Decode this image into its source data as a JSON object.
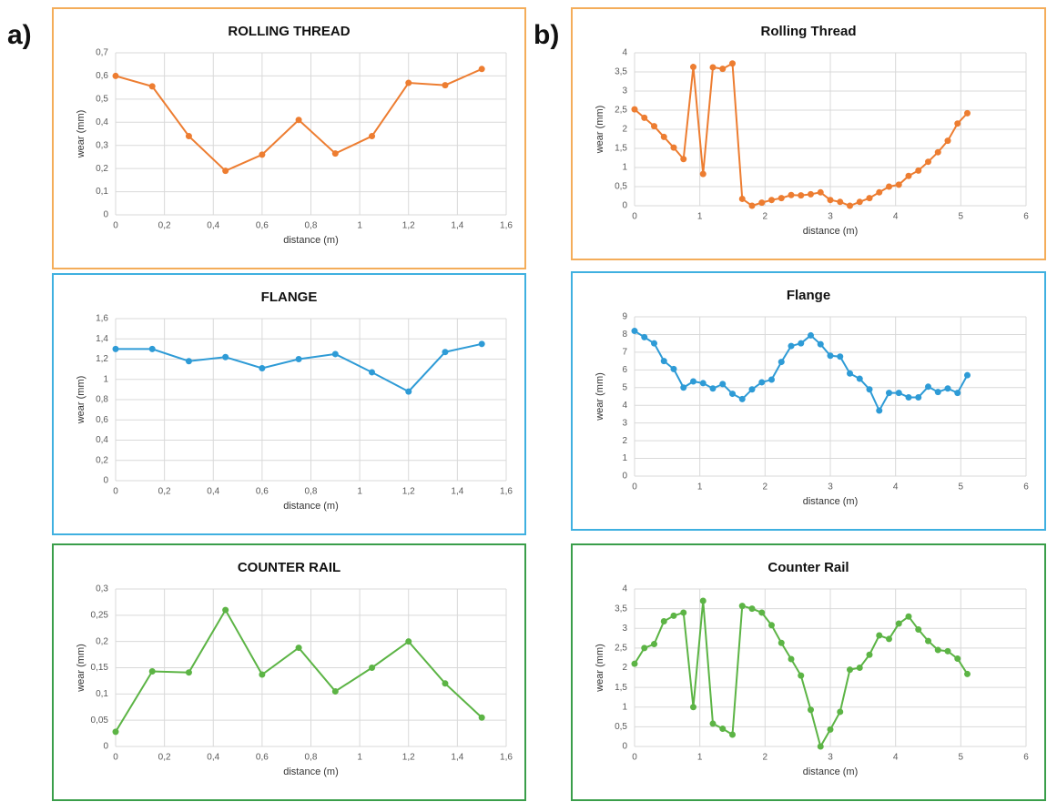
{
  "panel_labels": [
    "a)",
    "b)"
  ],
  "chart_data": [
    {
      "type": "line",
      "title": "ROLLING THREAD",
      "xlabel": "distance (m)",
      "ylabel": "wear (mm)",
      "color": "#ed7d31",
      "border_color": "#f4ad5a",
      "grid": true,
      "x": [
        0,
        0.15,
        0.3,
        0.45,
        0.6,
        0.75,
        0.9,
        1.05,
        1.2,
        1.35,
        1.5
      ],
      "values": [
        0.6,
        0.555,
        0.34,
        0.19,
        0.26,
        0.41,
        0.265,
        0.34,
        0.57,
        0.56,
        0.63
      ],
      "xlim": [
        0,
        1.6
      ],
      "xticks": [
        0,
        {
          "value": 0.2,
          "label": "0,2"
        },
        {
          "value": 0.4,
          "label": "0,4"
        },
        {
          "value": 0.6,
          "label": "0,6"
        },
        {
          "value": 0.8,
          "label": "0,8"
        },
        1,
        {
          "value": 1.2,
          "label": "1,2"
        },
        {
          "value": 1.4,
          "label": "1,4"
        },
        {
          "value": 1.6,
          "label": "1,6"
        }
      ],
      "ylim": [
        0,
        0.7
      ],
      "yticks": [
        0,
        {
          "value": 0.1,
          "label": "0,1"
        },
        {
          "value": 0.2,
          "label": "0,2"
        },
        {
          "value": 0.3,
          "label": "0,3"
        },
        {
          "value": 0.4,
          "label": "0,4"
        },
        {
          "value": 0.5,
          "label": "0,5"
        },
        {
          "value": 0.6,
          "label": "0,6"
        },
        {
          "value": 0.7,
          "label": "0,7"
        }
      ]
    },
    {
      "type": "line",
      "title": "Rolling Thread",
      "xlabel": "distance (m)",
      "ylabel": "wear (mm)",
      "color": "#ed7d31",
      "border_color": "#f4ad5a",
      "grid": true,
      "x": [
        0,
        0.15,
        0.3,
        0.45,
        0.6,
        0.75,
        0.9,
        1.05,
        1.2,
        1.35,
        1.5,
        1.65,
        1.8,
        1.95,
        2.1,
        2.25,
        2.4,
        2.55,
        2.7,
        2.85,
        3,
        3.15,
        3.3,
        3.45,
        3.6,
        3.75,
        3.9,
        4.05,
        4.2,
        4.35,
        4.5,
        4.65,
        4.8,
        4.95,
        5.1
      ],
      "values": [
        2.52,
        2.3,
        2.08,
        1.8,
        1.52,
        1.22,
        3.63,
        0.83,
        3.62,
        3.58,
        3.72,
        0.18,
        0,
        0.08,
        0.15,
        0.2,
        0.28,
        0.27,
        0.3,
        0.35,
        0.15,
        0.1,
        0,
        0.1,
        0.2,
        0.35,
        0.5,
        0.55,
        0.78,
        0.92,
        1.15,
        1.4,
        1.7,
        2.15,
        2.42
      ],
      "xlim": [
        0,
        6
      ],
      "xticks": [
        0,
        1,
        2,
        3,
        4,
        5,
        6
      ],
      "ylim": [
        0,
        4
      ],
      "yticks": [
        0,
        {
          "value": 0.5,
          "label": "0,5"
        },
        1,
        {
          "value": 1.5,
          "label": "1,5"
        },
        2,
        {
          "value": 2.5,
          "label": "2,5"
        },
        3,
        {
          "value": 3.5,
          "label": "3,5"
        },
        4
      ]
    },
    {
      "type": "line",
      "title": "FLANGE",
      "xlabel": "distance (m)",
      "ylabel": "wear (mm)",
      "color": "#2e9bd6",
      "border_color": "#3fb0e0",
      "grid": true,
      "x": [
        0,
        0.15,
        0.3,
        0.45,
        0.6,
        0.75,
        0.9,
        1.05,
        1.2,
        1.35,
        1.5
      ],
      "values": [
        1.3,
        1.3,
        1.18,
        1.22,
        1.11,
        1.2,
        1.25,
        1.07,
        0.88,
        1.27,
        1.35
      ],
      "xlim": [
        0,
        1.6
      ],
      "xticks": [
        0,
        {
          "value": 0.2,
          "label": "0,2"
        },
        {
          "value": 0.4,
          "label": "0,4"
        },
        {
          "value": 0.6,
          "label": "0,6"
        },
        {
          "value": 0.8,
          "label": "0,8"
        },
        1,
        {
          "value": 1.2,
          "label": "1,2"
        },
        {
          "value": 1.4,
          "label": "1,4"
        },
        {
          "value": 1.6,
          "label": "1,6"
        }
      ],
      "ylim": [
        0,
        1.6
      ],
      "yticks": [
        0,
        {
          "value": 0.2,
          "label": "0,2"
        },
        {
          "value": 0.4,
          "label": "0,4"
        },
        {
          "value": 0.6,
          "label": "0,6"
        },
        {
          "value": 0.8,
          "label": "0,8"
        },
        1,
        {
          "value": 1.2,
          "label": "1,2"
        },
        {
          "value": 1.4,
          "label": "1,4"
        },
        {
          "value": 1.6,
          "label": "1,6"
        }
      ]
    },
    {
      "type": "line",
      "title": "Flange",
      "xlabel": "distance (m)",
      "ylabel": "wear (mm)",
      "color": "#2e9bd6",
      "border_color": "#3fb0e0",
      "grid": true,
      "x": [
        0,
        0.15,
        0.3,
        0.45,
        0.6,
        0.75,
        0.9,
        1.05,
        1.2,
        1.35,
        1.5,
        1.65,
        1.8,
        1.95,
        2.1,
        2.25,
        2.4,
        2.55,
        2.7,
        2.85,
        3,
        3.15,
        3.3,
        3.45,
        3.6,
        3.75,
        3.9,
        4.05,
        4.2,
        4.35,
        4.5,
        4.65,
        4.8,
        4.95,
        5.1
      ],
      "values": [
        8.2,
        7.85,
        7.5,
        6.5,
        6.05,
        5,
        5.35,
        5.25,
        4.95,
        5.2,
        4.65,
        4.35,
        4.9,
        5.3,
        5.45,
        6.45,
        7.35,
        7.5,
        7.95,
        7.45,
        6.8,
        6.75,
        5.8,
        5.5,
        4.9,
        3.7,
        4.7,
        4.7,
        4.45,
        4.45,
        5.05,
        4.75,
        4.95,
        4.7,
        5.7
      ],
      "xlim": [
        0,
        6
      ],
      "xticks": [
        0,
        1,
        2,
        3,
        4,
        5,
        6
      ],
      "ylim": [
        0,
        9
      ],
      "yticks": [
        0,
        1,
        2,
        3,
        4,
        5,
        6,
        7,
        8,
        9
      ]
    },
    {
      "type": "line",
      "title": "COUNTER RAIL",
      "xlabel": "distance (m)",
      "ylabel": "wear (mm)",
      "color": "#5cb445",
      "border_color": "#3a9e4a",
      "grid": true,
      "x": [
        0,
        0.15,
        0.3,
        0.45,
        0.6,
        0.75,
        0.9,
        1.05,
        1.2,
        1.35,
        1.5
      ],
      "values": [
        0.028,
        0.143,
        0.141,
        0.26,
        0.137,
        0.188,
        0.105,
        0.15,
        0.2,
        0.12,
        0.055
      ],
      "xlim": [
        0,
        1.6
      ],
      "xticks": [
        0,
        {
          "value": 0.2,
          "label": "0,2"
        },
        {
          "value": 0.4,
          "label": "0,4"
        },
        {
          "value": 0.6,
          "label": "0,6"
        },
        {
          "value": 0.8,
          "label": "0,8"
        },
        1,
        {
          "value": 1.2,
          "label": "1,2"
        },
        {
          "value": 1.4,
          "label": "1,4"
        },
        {
          "value": 1.6,
          "label": "1,6"
        }
      ],
      "ylim": [
        0,
        0.3
      ],
      "yticks": [
        0,
        {
          "value": 0.05,
          "label": "0,05"
        },
        {
          "value": 0.1,
          "label": "0,1"
        },
        {
          "value": 0.15,
          "label": "0,15"
        },
        {
          "value": 0.2,
          "label": "0,2"
        },
        {
          "value": 0.25,
          "label": "0,25"
        },
        {
          "value": 0.3,
          "label": "0,3"
        }
      ]
    },
    {
      "type": "line",
      "title": "Counter Rail",
      "xlabel": "distance (m)",
      "ylabel": "wear (mm)",
      "color": "#5cb445",
      "border_color": "#3a9e4a",
      "grid": true,
      "x": [
        0,
        0.15,
        0.3,
        0.45,
        0.6,
        0.75,
        0.9,
        1.05,
        1.2,
        1.35,
        1.5,
        1.65,
        1.8,
        1.95,
        2.1,
        2.25,
        2.4,
        2.55,
        2.7,
        2.85,
        3,
        3.15,
        3.3,
        3.45,
        3.6,
        3.75,
        3.9,
        4.05,
        4.2,
        4.35,
        4.5,
        4.65,
        4.8,
        4.95,
        5.1
      ],
      "values": [
        2.1,
        2.5,
        2.6,
        3.18,
        3.32,
        3.4,
        1,
        3.7,
        0.58,
        0.45,
        0.3,
        3.57,
        3.5,
        3.4,
        3.08,
        2.63,
        2.22,
        1.8,
        0.93,
        0,
        0.43,
        0.88,
        1.95,
        2,
        2.33,
        2.82,
        2.73,
        3.12,
        3.3,
        2.97,
        2.68,
        2.45,
        2.42,
        2.23,
        1.84
      ],
      "xlim": [
        0,
        6
      ],
      "xticks": [
        0,
        1,
        2,
        3,
        4,
        5,
        6
      ],
      "ylim": [
        0,
        4
      ],
      "yticks": [
        0,
        {
          "value": 0.5,
          "label": "0,5"
        },
        1,
        {
          "value": 1.5,
          "label": "1,5"
        },
        2,
        {
          "value": 2.5,
          "label": "2,5"
        },
        3,
        {
          "value": 3.5,
          "label": "3,5"
        },
        4
      ]
    }
  ]
}
